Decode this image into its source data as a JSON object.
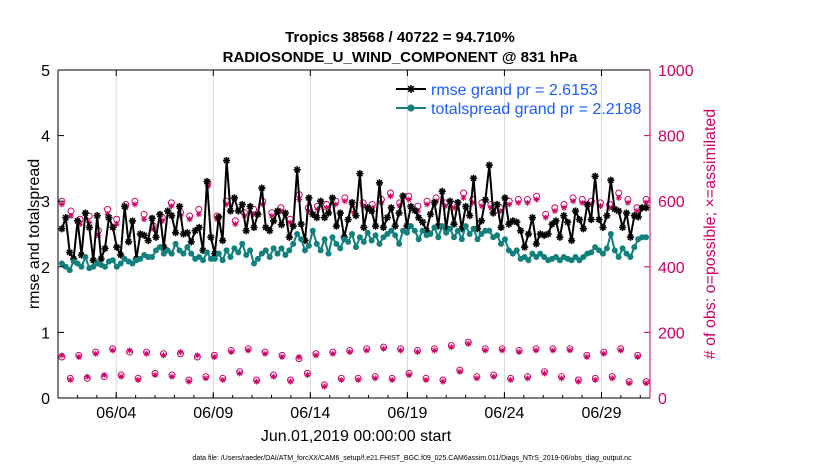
{
  "chart_data": {
    "type": "line",
    "title_line1": "Tropics 38568 / 40722 = 94.710%",
    "title_line2": "RADIOSONDE_U_WIND_COMPONENT @ 831 hPa",
    "xlabel": "Jun.01,2019 00:00:00 start",
    "ylabel_left": "rmse and totalspread",
    "ylabel_right": "# of obs: o=possible; ×=assimilated",
    "x_ticks": [
      "06/04",
      "06/09",
      "06/14",
      "06/19",
      "06/24",
      "06/29"
    ],
    "x_tick_days": [
      4,
      9,
      14,
      19,
      24,
      29
    ],
    "xlim": [
      1,
      31.5
    ],
    "ylim_left": [
      0,
      5
    ],
    "yticks_left": [
      "0",
      "1",
      "2",
      "3",
      "4",
      "5"
    ],
    "ylim_right": [
      0,
      1000
    ],
    "yticks_right": [
      "0",
      "200",
      "400",
      "600",
      "800",
      "1000"
    ],
    "footer": "data file: /Users/raeder/DAI/ATM_forcXX/CAM6_setup/f.e21.FHIST_BGC.f09_025.CAM6assim.011/Diags_NTrS_2019-06/obs_diag_output.nc",
    "colors": {
      "rmse": "#000000",
      "spread": "#12807d",
      "obs": "#cc0066",
      "legend_text": "#1a5cff"
    },
    "series": [
      {
        "name": "rmse grand pr = 2.6153",
        "values": [
          2.58,
          2.75,
          2.22,
          2.12,
          2.7,
          2.18,
          2.82,
          2.6,
          2.1,
          2.78,
          2.12,
          2.28,
          2.75,
          2.6,
          2.3,
          2.18,
          2.92,
          2.38,
          2.7,
          2.12,
          2.5,
          2.48,
          2.4,
          2.74,
          2.45,
          2.8,
          2.3,
          2.85,
          2.78,
          2.52,
          2.92,
          2.5,
          2.52,
          2.38,
          2.55,
          2.6,
          2.25,
          3.3,
          2.45,
          2.2,
          2.76,
          2.4,
          3.62,
          2.85,
          3.05,
          2.85,
          2.95,
          2.55,
          2.92,
          2.6,
          2.8,
          3.2,
          2.6,
          2.55,
          2.7,
          2.85,
          2.64,
          2.82,
          2.45,
          2.62,
          3.48,
          2.65,
          2.4,
          3.05,
          2.8,
          2.75,
          3.0,
          2.75,
          2.82,
          3.05,
          2.62,
          2.82,
          2.45,
          2.72,
          2.98,
          2.78,
          3.42,
          2.6,
          2.9,
          2.85,
          2.62,
          3.28,
          2.6,
          2.75,
          2.9,
          2.62,
          2.82,
          3.08,
          2.62,
          2.92,
          2.86,
          2.75,
          2.68,
          2.55,
          2.8,
          2.98,
          2.62,
          3.15,
          2.58,
          3.0,
          2.65,
          2.98,
          2.58,
          2.92,
          2.78,
          3.35,
          2.58,
          2.7,
          3.02,
          3.55,
          2.82,
          2.95,
          2.6,
          3.05,
          2.65,
          2.7,
          2.68,
          2.55,
          2.3,
          2.5,
          2.75,
          2.35,
          2.5,
          2.48,
          2.5,
          2.65,
          2.7,
          2.45,
          2.78,
          2.68,
          2.4,
          2.85,
          2.72,
          2.58,
          2.95,
          2.72,
          3.38,
          2.72,
          2.6,
          2.78,
          3.32,
          2.88,
          2.85,
          2.6,
          2.82,
          2.45,
          2.78,
          2.76,
          2.9,
          2.9
        ],
        "color": "#000000",
        "marker": "asterisk"
      },
      {
        "name": "totalspread grand pr = 2.2188",
        "values": [
          2.05,
          2.0,
          1.95,
          2.08,
          2.05,
          2.0,
          2.15,
          1.98,
          2.0,
          2.05,
          2.03,
          2.0,
          2.08,
          2.1,
          2.0,
          2.05,
          2.12,
          2.08,
          2.05,
          2.1,
          2.12,
          2.18,
          2.15,
          2.15,
          2.25,
          2.3,
          2.2,
          2.25,
          2.2,
          2.35,
          2.25,
          2.2,
          2.3,
          2.2,
          2.12,
          2.15,
          2.1,
          2.22,
          2.12,
          2.12,
          2.2,
          2.1,
          2.25,
          2.15,
          2.28,
          2.22,
          2.35,
          2.18,
          2.25,
          2.05,
          2.12,
          2.2,
          2.25,
          2.15,
          2.28,
          2.2,
          2.28,
          2.18,
          2.25,
          2.35,
          2.5,
          2.42,
          2.25,
          2.32,
          2.55,
          2.35,
          2.25,
          2.42,
          2.2,
          2.45,
          2.35,
          2.28,
          2.42,
          2.38,
          2.5,
          2.3,
          2.45,
          2.38,
          2.52,
          2.4,
          2.48,
          2.35,
          2.45,
          2.5,
          2.55,
          2.48,
          2.35,
          2.55,
          2.52,
          2.62,
          2.55,
          2.42,
          2.55,
          2.48,
          2.5,
          2.6,
          2.45,
          2.62,
          2.52,
          2.58,
          2.45,
          2.55,
          2.42,
          2.62,
          2.5,
          2.58,
          2.42,
          2.5,
          2.55,
          2.55,
          2.45,
          2.48,
          2.35,
          2.42,
          2.25,
          2.2,
          2.25,
          2.12,
          2.15,
          2.1,
          2.2,
          2.15,
          2.2,
          2.15,
          2.1,
          2.12,
          2.15,
          2.1,
          2.15,
          2.12,
          2.1,
          2.15,
          2.1,
          2.15,
          2.2,
          2.22,
          2.3,
          2.25,
          2.2,
          2.28,
          2.5,
          2.25,
          2.15,
          2.28,
          2.2,
          2.15,
          2.3,
          2.42,
          2.45,
          2.45
        ],
        "color": "#12807d",
        "marker": "dot"
      }
    ],
    "obs_possible_upper": [
      600,
      570,
      545,
      555,
      510,
      575,
      545,
      590,
      600,
      560,
      525,
      550,
      595,
      565,
      555,
      575,
      655,
      555,
      600,
      540,
      565,
      575,
      600,
      565,
      580,
      545,
      620,
      580,
      585,
      590,
      600,
      610,
      575,
      595,
      590,
      605,
      625,
      595,
      615,
      585,
      600,
      610,
      595,
      590,
      625,
      605,
      595,
      590,
      580,
      600,
      605,
      605,
      615,
      560,
      580,
      590,
      610,
      605,
      600,
      595,
      590,
      625,
      605,
      580,
      605
    ],
    "obs_assim_upper": [
      590,
      555,
      530,
      535,
      495,
      560,
      530,
      580,
      590,
      545,
      515,
      540,
      585,
      555,
      545,
      560,
      645,
      545,
      590,
      530,
      555,
      560,
      590,
      555,
      570,
      535,
      605,
      570,
      575,
      580,
      590,
      600,
      565,
      585,
      580,
      595,
      615,
      585,
      605,
      570,
      590,
      600,
      585,
      580,
      610,
      595,
      585,
      580,
      570,
      590,
      595,
      595,
      605,
      550,
      570,
      580,
      600,
      595,
      590,
      585,
      580,
      610,
      595,
      570,
      595
    ],
    "obs_possible_lower": [
      125,
      60,
      130,
      60,
      140,
      65,
      150,
      70,
      140,
      60,
      140,
      75,
      135,
      70,
      135,
      55,
      125,
      65,
      130,
      60,
      145,
      80,
      150,
      55,
      140,
      70,
      130,
      55,
      120,
      75,
      135,
      40,
      140,
      60,
      145,
      60,
      150,
      65,
      155,
      60,
      150,
      75,
      145,
      60,
      150,
      55,
      160,
      85,
      170,
      65,
      150,
      70,
      150,
      60,
      145,
      65,
      150,
      80,
      150,
      65,
      150,
      55,
      130,
      60,
      140,
      65,
      150,
      50,
      130,
      50
    ],
    "obs_assim_lower": [
      130,
      55,
      125,
      65,
      135,
      70,
      145,
      65,
      145,
      55,
      135,
      70,
      130,
      65,
      140,
      50,
      130,
      60,
      125,
      55,
      140,
      75,
      145,
      50,
      135,
      65,
      125,
      50,
      125,
      70,
      130,
      35,
      135,
      55,
      140,
      55,
      145,
      60,
      150,
      55,
      145,
      70,
      140,
      55,
      145,
      50,
      155,
      80,
      165,
      60,
      145,
      65,
      145,
      55,
      140,
      60,
      145,
      75,
      145,
      60,
      145,
      50,
      125,
      55,
      135,
      60,
      145,
      45,
      125,
      45
    ]
  }
}
